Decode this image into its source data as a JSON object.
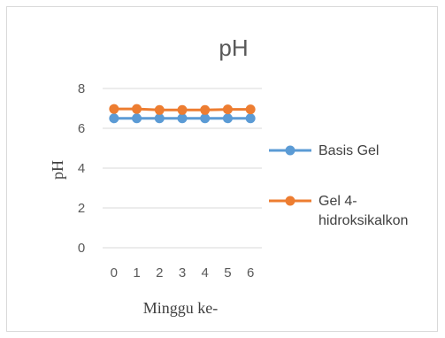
{
  "chart_data": {
    "type": "line",
    "title": "pH",
    "xlabel": "Minggu ke-",
    "ylabel": "pH",
    "categories": [
      "0",
      "1",
      "2",
      "3",
      "4",
      "5",
      "6"
    ],
    "ylim": [
      0,
      8
    ],
    "yticks": [
      0,
      2,
      4,
      6,
      8
    ],
    "grid": true,
    "legend_position": "right",
    "series": [
      {
        "name": "Basis Gel",
        "color": "#5b9bd5",
        "values": [
          6.5,
          6.5,
          6.5,
          6.5,
          6.5,
          6.5,
          6.5
        ]
      },
      {
        "name": "Gel 4-hidroksikalkon",
        "name_lines": [
          "Gel 4-",
          "hidroksikalkon"
        ],
        "color": "#ed7d31",
        "values": [
          6.97,
          6.97,
          6.92,
          6.92,
          6.92,
          6.95,
          6.95
        ]
      }
    ]
  }
}
